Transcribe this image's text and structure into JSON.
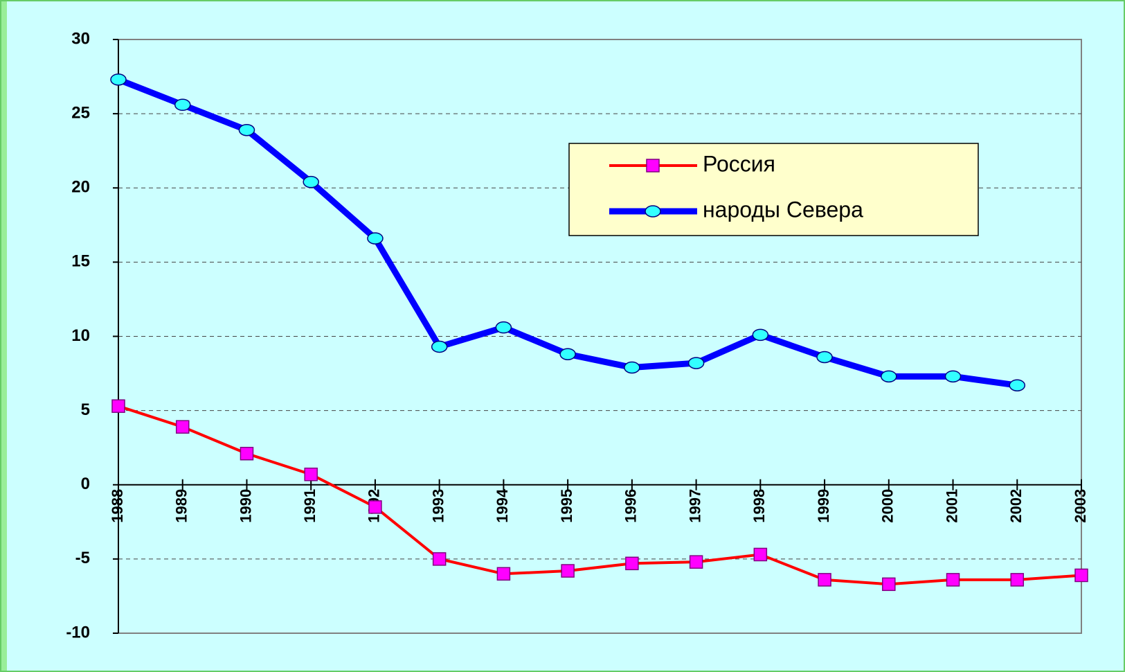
{
  "chart_data": {
    "type": "line",
    "categories": [
      "1988",
      "1989",
      "1990",
      "1991",
      "1992",
      "1993",
      "1994",
      "1995",
      "1996",
      "1997",
      "1998",
      "1999",
      "2000",
      "2001",
      "2002",
      "2003"
    ],
    "series": [
      {
        "name": "Россия",
        "color": "#ff0000",
        "marker_color": "#ff00ff",
        "marker": "square",
        "values": [
          5.3,
          3.9,
          2.1,
          0.7,
          -1.5,
          -5.0,
          -6.0,
          -5.8,
          -5.3,
          -5.2,
          -4.7,
          -6.4,
          -6.7,
          -6.4,
          -6.4,
          -6.1
        ]
      },
      {
        "name": "народы Севера",
        "color": "#0000ff",
        "marker_color": "#33ffff",
        "marker": "circle",
        "values": [
          27.3,
          25.6,
          23.9,
          20.4,
          16.6,
          9.3,
          10.6,
          8.8,
          7.9,
          8.2,
          10.1,
          8.6,
          7.3,
          7.3,
          6.7,
          null
        ]
      }
    ],
    "ylim": [
      -10,
      30
    ],
    "yticks": [
      -10,
      -5,
      0,
      5,
      10,
      15,
      20,
      25,
      30
    ],
    "grid": true
  }
}
